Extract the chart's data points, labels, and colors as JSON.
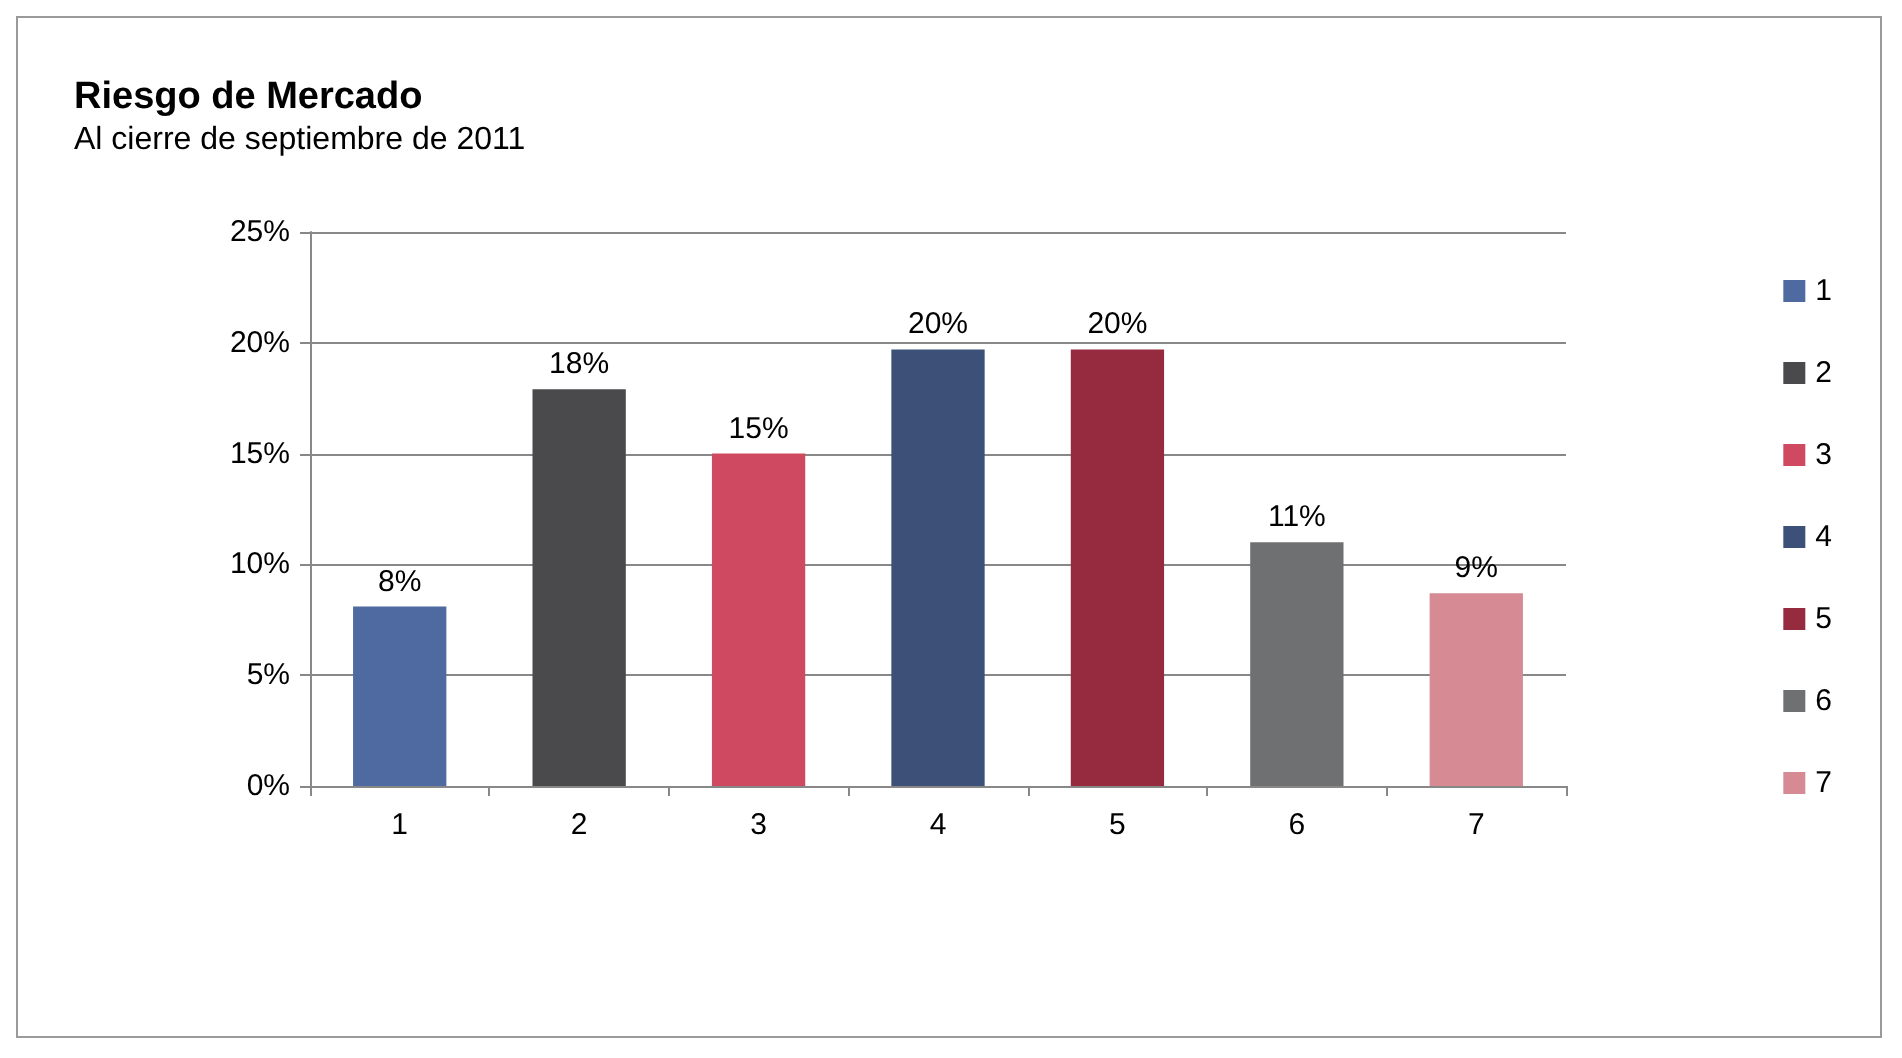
{
  "chart_data": {
    "type": "bar",
    "title": "Riesgo de Mercado",
    "subtitle": "Al cierre de septiembre de 2011",
    "categories": [
      "1",
      "2",
      "3",
      "4",
      "5",
      "6",
      "7"
    ],
    "series": [
      {
        "name": "1",
        "color": "#4f6aa0",
        "values": [
          8.1,
          null,
          null,
          null,
          null,
          null,
          null
        ],
        "value_labels": [
          "8%",
          null,
          null,
          null,
          null,
          null,
          null
        ]
      },
      {
        "name": "2",
        "color": "#4a4a4c",
        "values": [
          null,
          17.9,
          null,
          null,
          null,
          null,
          null
        ],
        "value_labels": [
          null,
          "18%",
          null,
          null,
          null,
          null,
          null
        ]
      },
      {
        "name": "3",
        "color": "#cf4a60",
        "values": [
          null,
          null,
          15,
          null,
          null,
          null,
          null
        ],
        "value_labels": [
          null,
          null,
          "15%",
          null,
          null,
          null,
          null
        ]
      },
      {
        "name": "4",
        "color": "#3c5078",
        "values": [
          null,
          null,
          null,
          19.7,
          null,
          null,
          null
        ],
        "value_labels": [
          null,
          null,
          null,
          "20%",
          null,
          null,
          null
        ]
      },
      {
        "name": "5",
        "color": "#962b40",
        "values": [
          null,
          null,
          null,
          null,
          19.7,
          null,
          null
        ],
        "value_labels": [
          null,
          null,
          null,
          null,
          "20%",
          null,
          null
        ]
      },
      {
        "name": "6",
        "color": "#6e7072",
        "values": [
          null,
          null,
          null,
          null,
          null,
          11,
          null
        ],
        "value_labels": [
          null,
          null,
          null,
          null,
          null,
          "11%",
          null
        ]
      },
      {
        "name": "7",
        "color": "#d58a94",
        "values": [
          null,
          null,
          null,
          null,
          null,
          null,
          8.7
        ],
        "value_labels": [
          null,
          null,
          null,
          null,
          null,
          null,
          "9%"
        ]
      }
    ],
    "stacked": true,
    "ylim": [
      0,
      25
    ],
    "yticks": [
      {
        "value": 0,
        "label": "0%"
      },
      {
        "value": 5,
        "label": "5%"
      },
      {
        "value": 10,
        "label": "10%"
      },
      {
        "value": 15,
        "label": "15%"
      },
      {
        "value": 20,
        "label": "20%"
      },
      {
        "value": 25,
        "label": "25%"
      }
    ],
    "grid": "y",
    "legend": "right"
  }
}
